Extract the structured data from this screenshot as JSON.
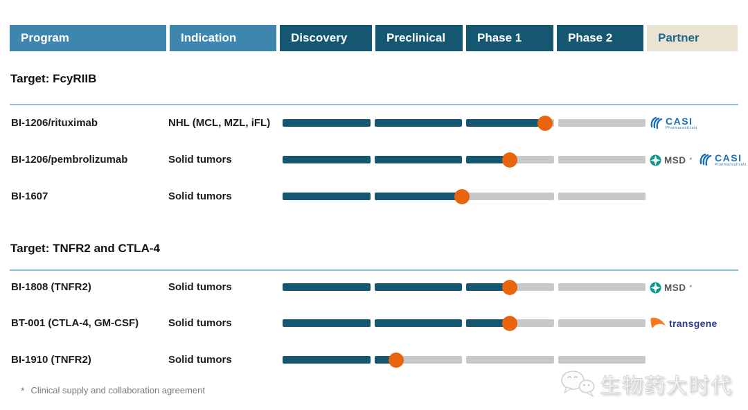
{
  "header": {
    "columns": [
      {
        "label": "Program",
        "variant": "light"
      },
      {
        "label": "Indication",
        "variant": "light"
      },
      {
        "label": "Discovery",
        "variant": "dark"
      },
      {
        "label": "Preclinical",
        "variant": "dark"
      },
      {
        "label": "Phase 1",
        "variant": "dark"
      },
      {
        "label": "Phase 2",
        "variant": "dark"
      },
      {
        "label": "Partner",
        "variant": "beige"
      }
    ]
  },
  "chart_data": {
    "type": "table",
    "phase_columns": [
      "Discovery",
      "Preclinical",
      "Phase 1",
      "Phase 2"
    ],
    "progress_note": "progress = number of phase columns completed (0-4 scale); orange dot marks current position",
    "groups": [
      {
        "title": "Target: FcyRIIB",
        "programs": [
          {
            "program": "BI-1206/rituximab",
            "indication": "NHL (MCL, MZL, iFL)",
            "progress": 2.9,
            "partners": [
              "casi"
            ]
          },
          {
            "program": "BI-1206/pembrolizumab",
            "indication": "Solid tumors",
            "progress": 2.5,
            "partners": [
              "msd",
              "casi"
            ]
          },
          {
            "program": "BI-1607",
            "indication": "Solid tumors",
            "progress": 2.0,
            "partners": []
          }
        ]
      },
      {
        "title": "Target: TNFR2 and CTLA-4",
        "programs": [
          {
            "program": "BI-1808 (TNFR2)",
            "indication": "Solid tumors",
            "progress": 2.5,
            "partners": [
              "msd"
            ]
          },
          {
            "program": "BT-001 (CTLA-4, GM-CSF)",
            "indication": "Solid tumors",
            "progress": 2.5,
            "partners": [
              "transgene"
            ]
          },
          {
            "program": "BI-1910 (TNFR2)",
            "indication": "Solid tumors",
            "progress": 1.25,
            "partners": []
          }
        ]
      }
    ]
  },
  "partners": {
    "casi": {
      "name": "CASI",
      "sub": "Pharmaceuticals",
      "color": "#1b6db6"
    },
    "msd": {
      "name": "MSD",
      "mark": "*",
      "icon_color": "#0d9a8c",
      "text_color": "#54565a"
    },
    "transgene": {
      "name": "transgene",
      "color": "#2b3a8f",
      "icon_color": "#f4791f"
    }
  },
  "footnote": {
    "marker": "*",
    "text": "Clinical supply and collaboration agreement"
  },
  "watermark": {
    "text": "生物药大时代"
  },
  "colors": {
    "header_light": "#3e86ad",
    "header_dark": "#155670",
    "partner_bg": "#eae3d1",
    "partner_text": "#1d6a8e",
    "bar_fill": "#155670",
    "bar_track": "#c8c8c8",
    "dot": "#e8650e",
    "section_rule": "#8fc0dd",
    "footnote_text": "#7a7a7a"
  }
}
